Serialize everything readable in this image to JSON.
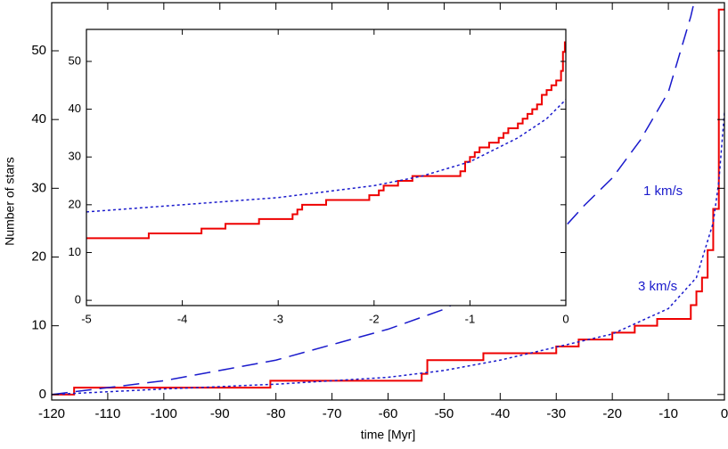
{
  "chart_data": [
    {
      "type": "line",
      "xlabel": "time [Myr]",
      "ylabel": "Number of stars",
      "xlim": [
        -120,
        0
      ],
      "ylim": [
        -0.8,
        57
      ],
      "xticks": [
        -120,
        -110,
        -100,
        -90,
        -80,
        -70,
        -60,
        -50,
        -40,
        -30,
        -20,
        -10,
        0
      ],
      "yticks": [
        0,
        10,
        20,
        30,
        40,
        50
      ],
      "series": [
        {
          "style": "step",
          "color": "#ee0000",
          "x": [
            -120,
            -116,
            -81,
            -54,
            -53,
            -43,
            -30,
            -26,
            -20,
            -16,
            -12,
            -6,
            -5,
            -4,
            -3,
            -2,
            -1,
            0
          ],
          "values": [
            0,
            1,
            2,
            3,
            5,
            6,
            7,
            8,
            9,
            10,
            11,
            13,
            15,
            17,
            21,
            27,
            56,
            56
          ]
        },
        {
          "name": "1 km/s",
          "style": "dashed",
          "color": "#1a1acc",
          "x": [
            -120,
            -100,
            -80,
            -60,
            -50,
            -40,
            -30,
            -25,
            -20,
            -15,
            -10,
            -6,
            -4
          ],
          "values": [
            0,
            2,
            5,
            9.5,
            12.4,
            17,
            23,
            27.5,
            31.5,
            37,
            44,
            55,
            62
          ]
        },
        {
          "name": "3 km/s",
          "style": "dotted",
          "color": "#1a1acc",
          "x": [
            -120,
            -100,
            -80,
            -60,
            -50,
            -40,
            -30,
            -20,
            -10,
            -5,
            -2,
            -1,
            -0.3,
            0
          ],
          "values": [
            0,
            0.8,
            1.5,
            2.5,
            3.5,
            5,
            6.9,
            8.8,
            12.5,
            17,
            25,
            31,
            38,
            41
          ]
        }
      ]
    },
    {
      "type": "line",
      "xlim": [
        -5,
        0
      ],
      "ylim": [
        -1.1,
        56.7
      ],
      "xticks": [
        -5,
        -4,
        -3,
        -2,
        -1,
        0
      ],
      "yticks": [
        0,
        10,
        20,
        30,
        40,
        50
      ],
      "series": [
        {
          "style": "step",
          "color": "#ee0000",
          "x": [
            -5,
            -4.35,
            -3.8,
            -3.55,
            -3.2,
            -2.85,
            -2.8,
            -2.75,
            -2.5,
            -2.05,
            -1.95,
            -1.9,
            -1.75,
            -1.6,
            -1.1,
            -1.05,
            -1.0,
            -0.95,
            -0.9,
            -0.8,
            -0.7,
            -0.65,
            -0.6,
            -0.5,
            -0.45,
            -0.4,
            -0.35,
            -0.3,
            -0.25,
            -0.2,
            -0.15,
            -0.1,
            -0.05,
            -0.03,
            -0.01,
            0
          ],
          "values": [
            13,
            14,
            15,
            16,
            17,
            18,
            19,
            20,
            21,
            22,
            23,
            24,
            25,
            26,
            27,
            29,
            30,
            31,
            32,
            33,
            34,
            35,
            36,
            37,
            38,
            39,
            40,
            41,
            43,
            44,
            45,
            46,
            48,
            52,
            54,
            54
          ]
        },
        {
          "style": "dotted",
          "color": "#1a1acc",
          "x": [
            -5,
            -4,
            -3,
            -2,
            -1.5,
            -1,
            -0.5,
            -0.2,
            0
          ],
          "values": [
            18.5,
            20,
            21.5,
            24,
            26,
            29,
            34,
            38,
            42
          ]
        }
      ]
    }
  ]
}
